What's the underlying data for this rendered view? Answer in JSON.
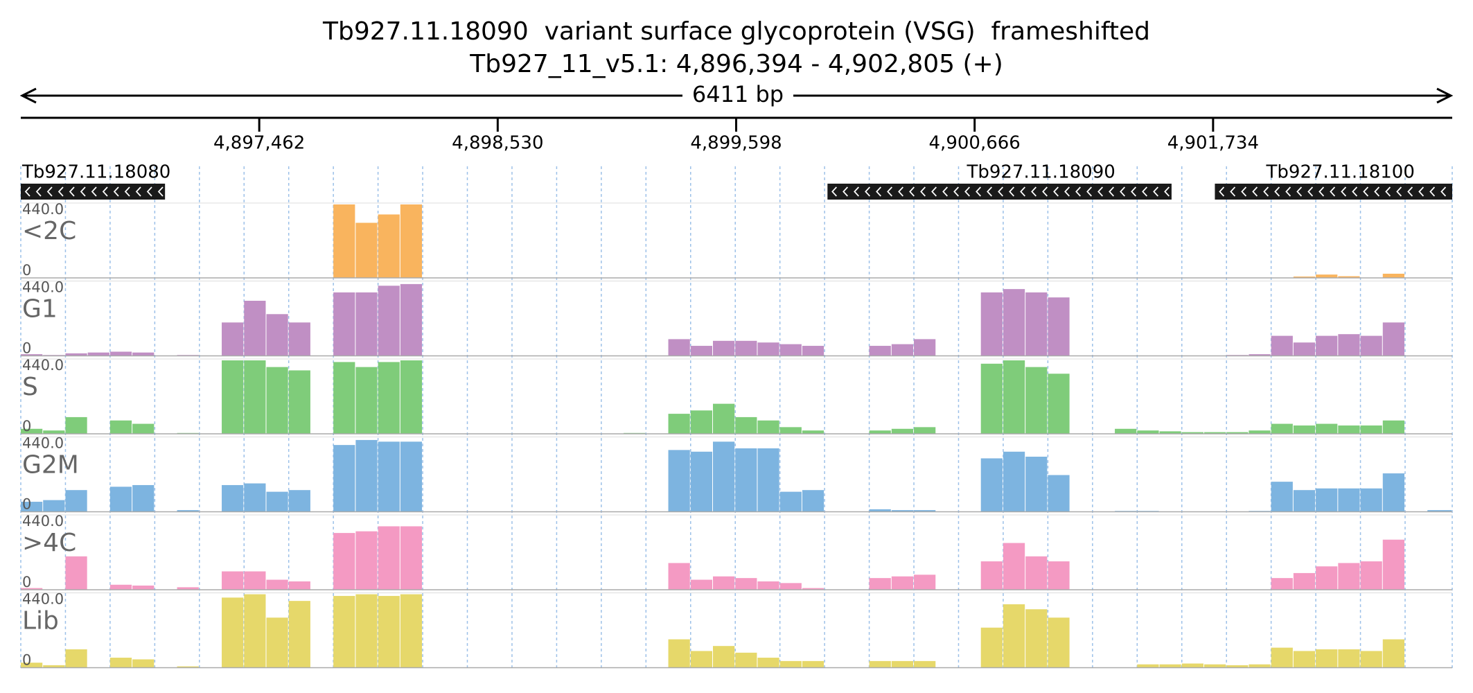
{
  "title": "Tb927.11.18090  variant surface glycoprotein (VSG)  frameshifted",
  "subtitle": "Tb927_11_v5.1: 4,896,394 - 4,902,805 (+)",
  "span_label": "6411 bp",
  "xlim": [
    4896394,
    4902805
  ],
  "xticks": [
    {
      "value": 4897462,
      "label": "4,897,462"
    },
    {
      "value": 4898530,
      "label": "4,898,530"
    },
    {
      "value": 4899598,
      "label": "4,899,598"
    },
    {
      "value": 4900666,
      "label": "4,900,666"
    },
    {
      "value": 4901734,
      "label": "4,901,734"
    }
  ],
  "genes": [
    {
      "name": "Tb927.11.18080",
      "start": 4896394,
      "end": 4897040
    },
    {
      "name": "Tb927.11.18090",
      "start": 4900007,
      "end": 4901548
    },
    {
      "name": "Tb927.11.18100",
      "start": 4901742,
      "end": 4902805
    }
  ],
  "bins": [
    4896394,
    4896494,
    4896594,
    4896694,
    4896794,
    4896894,
    4896994,
    4897094,
    4897194,
    4897294,
    4897394,
    4897494,
    4897594,
    4897694,
    4897794,
    4897894,
    4897994,
    4898094,
    4898194,
    4898294,
    4898394,
    4898494,
    4898594,
    4898694,
    4898794,
    4898894,
    4898994,
    4899094,
    4899194,
    4899294,
    4899394,
    4899494,
    4899594,
    4899694,
    4899794,
    4899894,
    4899994,
    4900094,
    4900194,
    4900294,
    4900394,
    4900494,
    4900594,
    4900694,
    4900794,
    4900894,
    4900994,
    4901094,
    4901194,
    4901294,
    4901394,
    4901494,
    4901594,
    4901694,
    4901794,
    4901894,
    4901994,
    4902094,
    4902194,
    4902294,
    4902394,
    4902494,
    4902594,
    4902694,
    4902805
  ],
  "tracks": [
    {
      "name": "<2C",
      "color": "#f9b45e",
      "ylim": [
        0,
        440
      ],
      "yticks": [
        0,
        {
          "value": 440,
          "label": "440.0"
        }
      ],
      "values": [
        0,
        0,
        0,
        0,
        0,
        0,
        0,
        0,
        0,
        0,
        0,
        0,
        0,
        0,
        440,
        330,
        380,
        440,
        0,
        0,
        0,
        0,
        0,
        0,
        0,
        0,
        0,
        0,
        0,
        0,
        0,
        0,
        0,
        0,
        0,
        0,
        0,
        0,
        0,
        0,
        0,
        0,
        0,
        0,
        0,
        0,
        0,
        0,
        0,
        0,
        0,
        0,
        0,
        0,
        0,
        0,
        0,
        8,
        20,
        10,
        0,
        25,
        0,
        0
      ]
    },
    {
      "name": "G1",
      "color": "#c08fc4",
      "ylim": [
        0,
        440
      ],
      "yticks": [
        0,
        {
          "value": 440,
          "label": "440.0"
        }
      ],
      "values": [
        10,
        5,
        15,
        20,
        25,
        20,
        0,
        5,
        0,
        200,
        330,
        250,
        200,
        0,
        380,
        380,
        420,
        430,
        0,
        0,
        0,
        0,
        0,
        0,
        0,
        0,
        0,
        0,
        0,
        100,
        60,
        90,
        90,
        80,
        70,
        60,
        0,
        0,
        60,
        70,
        100,
        0,
        0,
        380,
        400,
        380,
        350,
        0,
        0,
        0,
        0,
        0,
        0,
        0,
        5,
        10,
        120,
        80,
        120,
        130,
        120,
        200,
        0,
        0
      ]
    },
    {
      "name": "S",
      "color": "#7fcc7a",
      "ylim": [
        0,
        440
      ],
      "yticks": [
        0,
        {
          "value": 440,
          "label": "440.0"
        }
      ],
      "values": [
        30,
        20,
        100,
        0,
        80,
        60,
        0,
        5,
        0,
        440,
        440,
        400,
        380,
        0,
        430,
        400,
        430,
        440,
        0,
        0,
        0,
        0,
        0,
        0,
        0,
        0,
        0,
        5,
        0,
        120,
        140,
        180,
        100,
        80,
        40,
        20,
        0,
        0,
        20,
        30,
        40,
        0,
        0,
        420,
        440,
        400,
        360,
        0,
        0,
        30,
        20,
        15,
        10,
        10,
        10,
        20,
        60,
        50,
        60,
        50,
        50,
        80,
        0,
        0
      ]
    },
    {
      "name": "G2M",
      "color": "#7db4e0",
      "ylim": [
        0,
        440
      ],
      "yticks": [
        0,
        {
          "value": 440,
          "label": "440.0"
        }
      ],
      "values": [
        60,
        70,
        130,
        0,
        150,
        160,
        0,
        10,
        0,
        160,
        170,
        120,
        130,
        0,
        400,
        430,
        420,
        420,
        0,
        0,
        0,
        0,
        0,
        0,
        0,
        0,
        0,
        0,
        0,
        370,
        360,
        420,
        380,
        380,
        120,
        130,
        0,
        0,
        15,
        10,
        10,
        0,
        0,
        320,
        360,
        330,
        220,
        0,
        0,
        5,
        5,
        0,
        0,
        0,
        0,
        5,
        180,
        130,
        140,
        140,
        140,
        230,
        0,
        10
      ]
    },
    {
      "name": ">4C",
      "color": "#f49ac3",
      "ylim": [
        0,
        440
      ],
      "yticks": [
        0,
        {
          "value": 440,
          "label": "440.0"
        }
      ],
      "values": [
        10,
        0,
        200,
        0,
        30,
        25,
        0,
        15,
        0,
        110,
        110,
        60,
        50,
        0,
        340,
        350,
        380,
        380,
        0,
        0,
        0,
        0,
        0,
        0,
        0,
        0,
        0,
        0,
        0,
        160,
        60,
        80,
        70,
        50,
        40,
        10,
        0,
        0,
        70,
        80,
        90,
        0,
        0,
        170,
        280,
        200,
        170,
        0,
        0,
        0,
        0,
        0,
        0,
        0,
        0,
        0,
        70,
        100,
        140,
        160,
        170,
        300,
        0,
        0
      ]
    },
    {
      "name": "Lib",
      "color": "#e6d86a",
      "ylim": [
        0,
        440
      ],
      "yticks": [
        0,
        {
          "value": 440,
          "label": "440.0"
        }
      ],
      "values": [
        30,
        15,
        110,
        0,
        60,
        50,
        0,
        8,
        0,
        420,
        440,
        300,
        400,
        0,
        430,
        440,
        430,
        440,
        0,
        0,
        0,
        0,
        0,
        0,
        0,
        0,
        0,
        0,
        0,
        170,
        100,
        130,
        90,
        60,
        40,
        40,
        0,
        0,
        40,
        40,
        40,
        0,
        0,
        240,
        380,
        350,
        300,
        0,
        0,
        0,
        20,
        20,
        25,
        20,
        15,
        20,
        120,
        100,
        110,
        110,
        100,
        170,
        0,
        0
      ]
    }
  ]
}
